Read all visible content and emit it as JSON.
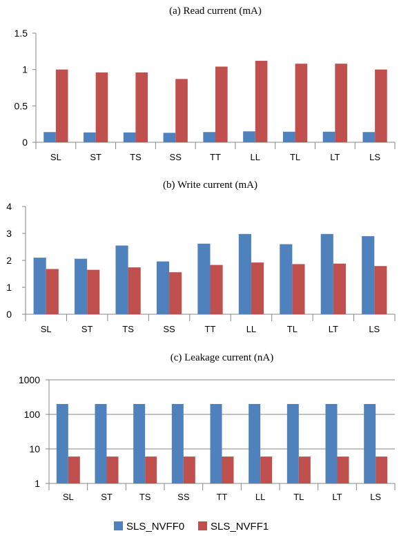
{
  "colors": {
    "series0": "#4F81BD",
    "series1": "#C0504D"
  },
  "legend": {
    "position": "bottom",
    "items": [
      "SLS_NVFF0",
      "SLS_NVFF1"
    ]
  },
  "chart_data": [
    {
      "type": "bar",
      "title": "(a) Read current (mA)",
      "categories": [
        "SL",
        "ST",
        "TS",
        "SS",
        "TT",
        "LL",
        "TL",
        "LT",
        "LS"
      ],
      "ylim": [
        0,
        1.5
      ],
      "yticks": [
        0,
        0.5,
        1,
        1.5
      ],
      "ytick_labels": [
        "0",
        "0.5",
        "1",
        "1.5"
      ],
      "scale": "linear",
      "grid": false,
      "series": [
        {
          "name": "SLS_NVFF0",
          "values": [
            0.14,
            0.135,
            0.135,
            0.13,
            0.14,
            0.15,
            0.145,
            0.145,
            0.14
          ]
        },
        {
          "name": "SLS_NVFF1",
          "values": [
            1.0,
            0.96,
            0.96,
            0.87,
            1.04,
            1.12,
            1.08,
            1.08,
            1.0
          ]
        }
      ]
    },
    {
      "type": "bar",
      "title": "(b) Write current (mA)",
      "categories": [
        "SL",
        "ST",
        "TS",
        "SS",
        "TT",
        "LL",
        "TL",
        "LT",
        "LS"
      ],
      "ylim": [
        0,
        4
      ],
      "yticks": [
        0,
        1,
        2,
        3,
        4
      ],
      "ytick_labels": [
        "0",
        "1",
        "2",
        "3",
        "4"
      ],
      "scale": "linear",
      "grid": false,
      "series": [
        {
          "name": "SLS_NVFF0",
          "values": [
            2.1,
            2.06,
            2.55,
            1.96,
            2.62,
            2.98,
            2.6,
            2.98,
            2.9
          ]
        },
        {
          "name": "SLS_NVFF1",
          "values": [
            1.68,
            1.65,
            1.74,
            1.56,
            1.83,
            1.92,
            1.86,
            1.88,
            1.79
          ]
        }
      ]
    },
    {
      "type": "bar",
      "title": "(c) Leakage current (nA)",
      "categories": [
        "SL",
        "ST",
        "TS",
        "SS",
        "TT",
        "LL",
        "TL",
        "LT",
        "LS"
      ],
      "ylim": [
        1,
        1000
      ],
      "yticks": [
        1,
        10,
        100,
        1000
      ],
      "ytick_labels": [
        "1",
        "10",
        "100",
        "1000"
      ],
      "scale": "log",
      "grid": true,
      "series": [
        {
          "name": "SLS_NVFF0",
          "values": [
            200,
            200,
            200,
            200,
            200,
            200,
            200,
            200,
            200
          ]
        },
        {
          "name": "SLS_NVFF1",
          "values": [
            6,
            6,
            6,
            6,
            6,
            6,
            6,
            6,
            6
          ]
        }
      ]
    }
  ]
}
